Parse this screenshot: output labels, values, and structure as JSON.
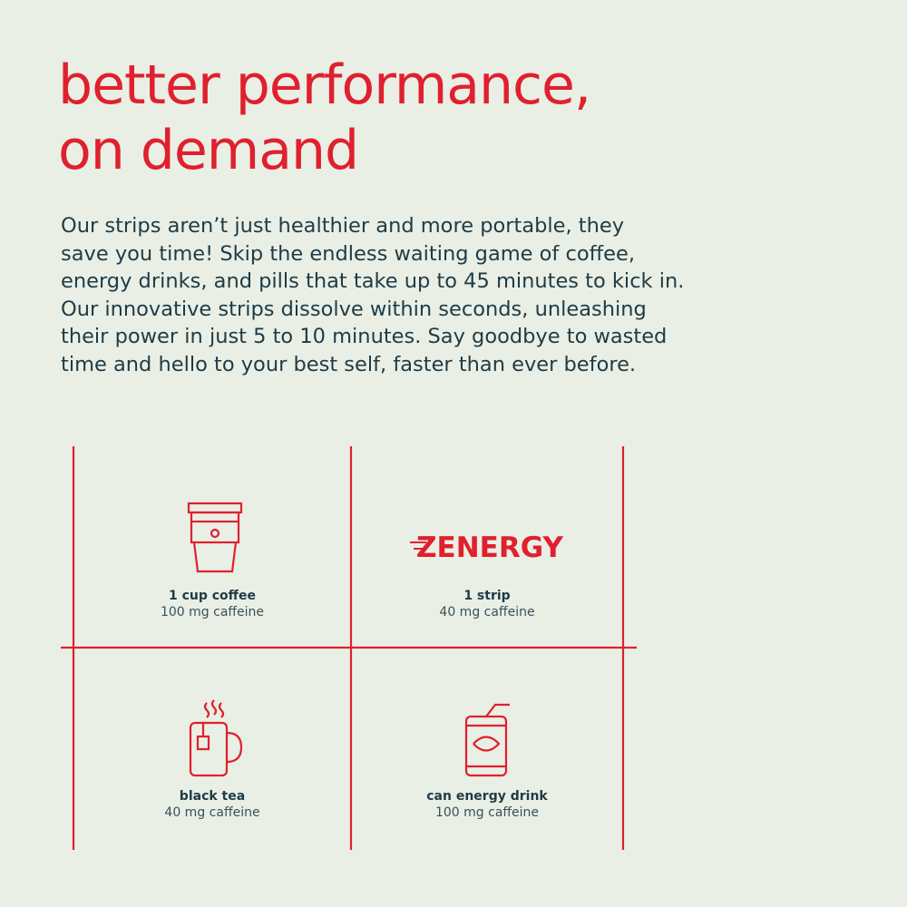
{
  "header": {
    "title_lines": [
      "better performance,",
      "on demand"
    ]
  },
  "body": {
    "lines": [
      "Our strips aren’t just healthier and more portable, they",
      "save you time! Skip the endless waiting game of coffee,",
      "energy drinks, and pills that take up to 45 minutes to kick in.",
      "Our innovative strips dissolve within seconds, unleashing",
      "their power in just 5 to 10 minutes. Say goodbye to wasted",
      "time and hello to your best self, faster than ever before."
    ]
  },
  "comparison": {
    "items": [
      {
        "name": "1 cup coffee",
        "caffeine": "100 mg caffeine"
      },
      {
        "logo": "ZENERGY",
        "name": "1 strip",
        "caffeine": "40 mg caffeine"
      },
      {
        "name": "black tea",
        "caffeine": "40 mg caffeine"
      },
      {
        "name": "can energy drink",
        "caffeine": "100 mg caffeine"
      }
    ]
  }
}
